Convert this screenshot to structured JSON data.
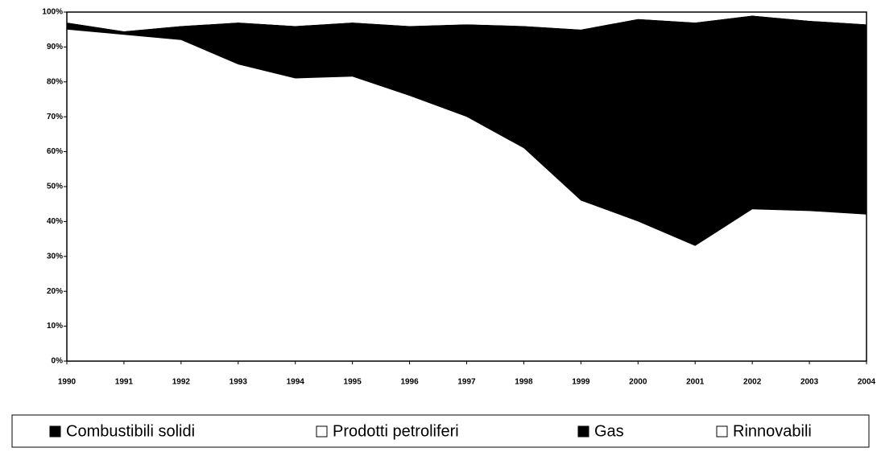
{
  "chart_data": {
    "type": "stacked_area",
    "categories": [
      "1990",
      "1991",
      "1992",
      "1993",
      "1994",
      "1995",
      "1996",
      "1997",
      "1998",
      "1999",
      "2000",
      "2001",
      "2002",
      "2003",
      "2004"
    ],
    "series": [
      {
        "name": "Combustibili solidi",
        "color": "#000000",
        "values": [
          0,
          0,
          0,
          0,
          0,
          0,
          0,
          0,
          0,
          0,
          0,
          0,
          0,
          0,
          0
        ]
      },
      {
        "name": "Prodotti petroliferi",
        "color": "#ffffff",
        "values": [
          95,
          93.5,
          92,
          85,
          81,
          81.5,
          76,
          70,
          61,
          46,
          40,
          33,
          43.5,
          43,
          42
        ]
      },
      {
        "name": "Gas",
        "color": "#000000",
        "values": [
          2,
          1,
          4,
          12,
          15,
          15.5,
          20,
          26.5,
          35,
          49,
          58,
          64,
          55.5,
          54.5,
          54.5
        ]
      },
      {
        "name": "Rinnovabili",
        "color": "#ffffff",
        "values": [
          3,
          5.5,
          4,
          3,
          4,
          3,
          4,
          3.5,
          4,
          5,
          2,
          3,
          1,
          2.5,
          3.5
        ]
      }
    ],
    "ylim": [
      0,
      100
    ],
    "yticks": [
      {
        "value": 0,
        "label": "0%"
      },
      {
        "value": 10,
        "label": "10%"
      },
      {
        "value": 20,
        "label": "20%"
      },
      {
        "value": 30,
        "label": "30%"
      },
      {
        "value": 40,
        "label": "40%"
      },
      {
        "value": 50,
        "label": "50%"
      },
      {
        "value": 60,
        "label": "60%"
      },
      {
        "value": 70,
        "label": "70%"
      },
      {
        "value": 80,
        "label": "80%"
      },
      {
        "value": 90,
        "label": "90%"
      },
      {
        "value": 100,
        "label": "100%"
      }
    ]
  }
}
